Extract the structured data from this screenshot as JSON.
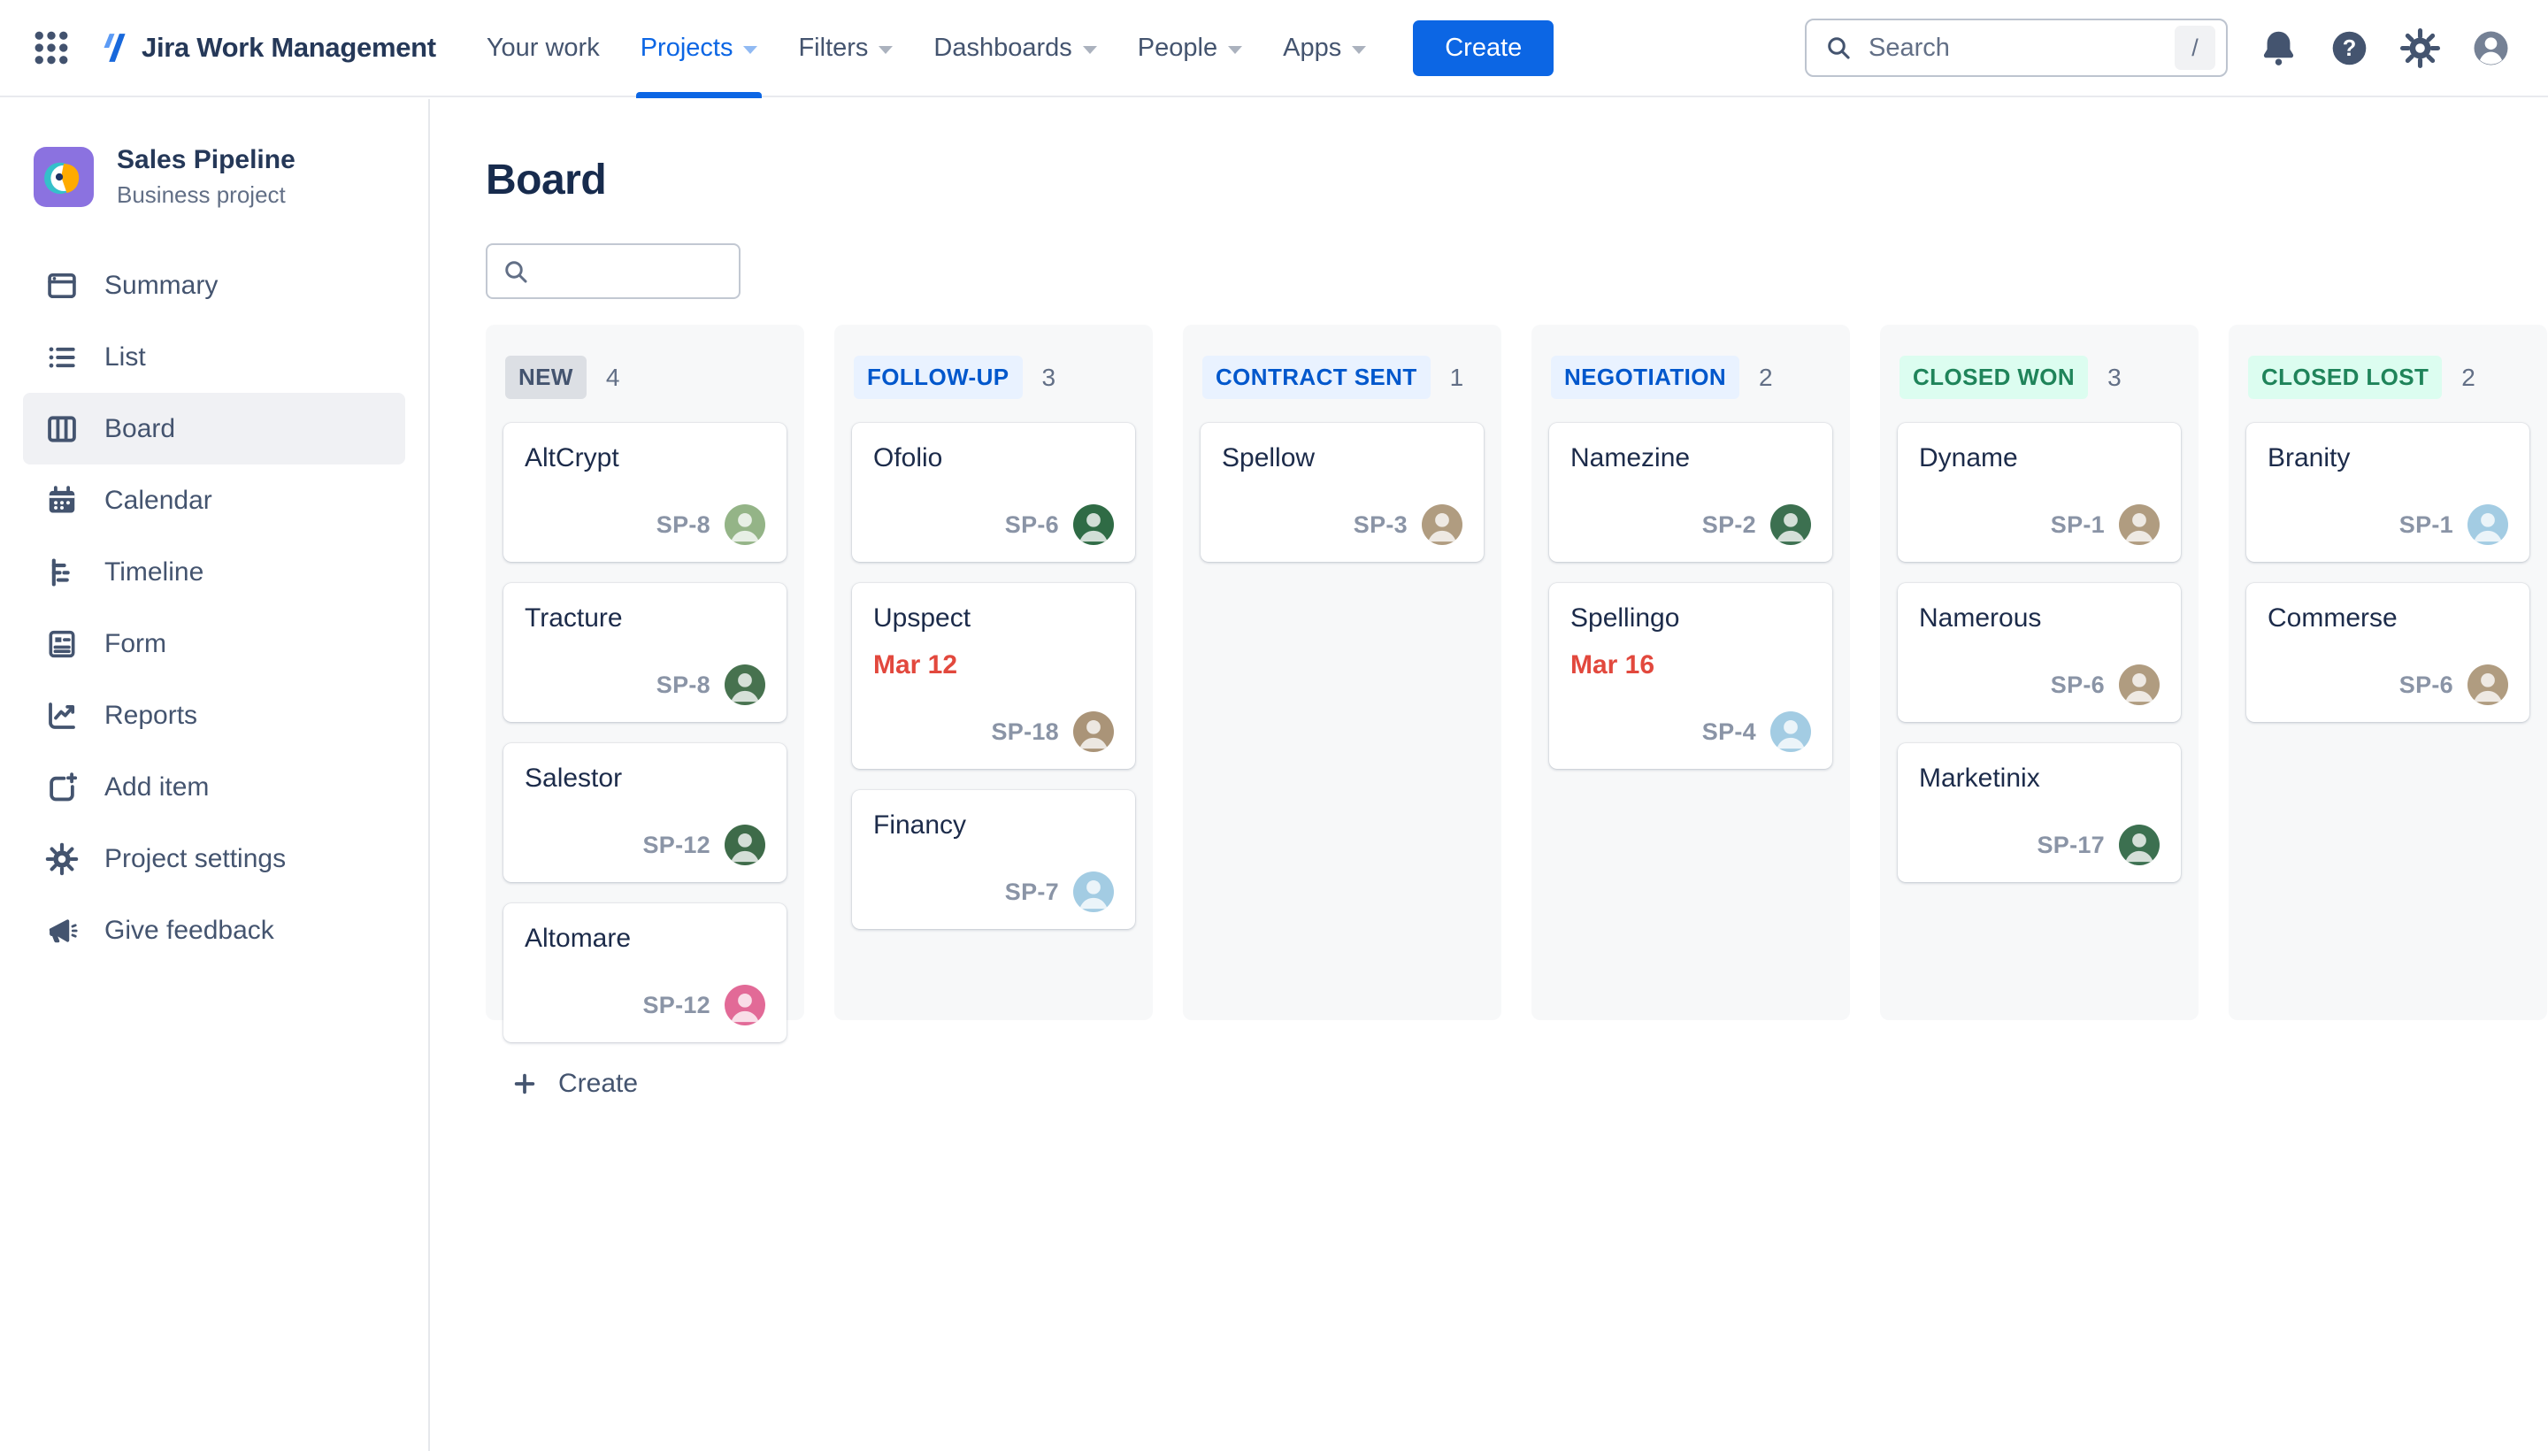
{
  "nav": {
    "app_title": "Jira Work Management",
    "items": [
      {
        "id": "your-work",
        "label": "Your work",
        "caret": false,
        "active": false
      },
      {
        "id": "projects",
        "label": "Projects",
        "caret": true,
        "active": true
      },
      {
        "id": "filters",
        "label": "Filters",
        "caret": true,
        "active": false
      },
      {
        "id": "dashboards",
        "label": "Dashboards",
        "caret": true,
        "active": false
      },
      {
        "id": "people",
        "label": "People",
        "caret": true,
        "active": false
      },
      {
        "id": "apps",
        "label": "Apps",
        "caret": true,
        "active": false
      }
    ],
    "create_label": "Create",
    "search": {
      "placeholder": "Search",
      "shortcut": "/"
    },
    "icon_buttons": [
      {
        "id": "notifications",
        "icon": "bell-icon"
      },
      {
        "id": "help",
        "icon": "help-icon"
      },
      {
        "id": "settings",
        "icon": "gear-icon"
      },
      {
        "id": "profile",
        "icon": "avatar-icon"
      }
    ]
  },
  "sidebar": {
    "project": {
      "name": "Sales Pipeline",
      "type": "Business project",
      "icon": "parrot-project-icon"
    },
    "items": [
      {
        "id": "summary",
        "label": "Summary",
        "icon": "summary-icon",
        "active": false
      },
      {
        "id": "list",
        "label": "List",
        "icon": "list-icon",
        "active": false
      },
      {
        "id": "board",
        "label": "Board",
        "icon": "board-icon",
        "active": true
      },
      {
        "id": "calendar",
        "label": "Calendar",
        "icon": "calendar-icon",
        "active": false
      },
      {
        "id": "timeline",
        "label": "Timeline",
        "icon": "timeline-icon",
        "active": false
      },
      {
        "id": "form",
        "label": "Form",
        "icon": "form-icon",
        "active": false
      },
      {
        "id": "reports",
        "label": "Reports",
        "icon": "reports-icon",
        "active": false
      },
      {
        "id": "add-item",
        "label": "Add item",
        "icon": "add-item-icon",
        "active": false
      },
      {
        "id": "project-settings",
        "label": "Project settings",
        "icon": "gear-icon",
        "active": false
      },
      {
        "id": "give-feedback",
        "label": "Give feedback",
        "icon": "megaphone-icon",
        "active": false
      }
    ]
  },
  "board": {
    "title": "Board",
    "search_placeholder": "",
    "create_label": "Create",
    "columns": [
      {
        "name": "NEW",
        "count": 4,
        "style": "gray",
        "has_create": true,
        "cards": [
          {
            "title": "AltCrypt",
            "key": "SP-8",
            "avatar_color": "#94B487"
          },
          {
            "title": "Tracture",
            "key": "SP-8",
            "avatar_color": "#47724F"
          },
          {
            "title": "Salestor",
            "key": "SP-12",
            "avatar_color": "#3E6B49"
          },
          {
            "title": "Altomare",
            "key": "SP-12",
            "avatar_color": "#E26A97"
          }
        ]
      },
      {
        "name": "FOLLOW-UP",
        "count": 3,
        "style": "blue",
        "has_create": false,
        "cards": [
          {
            "title": "Ofolio",
            "key": "SP-6",
            "avatar_color": "#2F6B45"
          },
          {
            "title": "Upspect",
            "key": "SP-18",
            "due": "Mar 12",
            "avatar_color": "#AA9478"
          },
          {
            "title": "Financy",
            "key": "SP-7",
            "avatar_color": "#A3CCE3"
          }
        ]
      },
      {
        "name": "CONTRACT SENT",
        "count": 1,
        "style": "blue",
        "has_create": false,
        "cards": [
          {
            "title": "Spellow",
            "key": "SP-3",
            "avatar_color": "#B09C80"
          }
        ]
      },
      {
        "name": "NEGOTIATION",
        "count": 2,
        "style": "blue",
        "has_create": false,
        "cards": [
          {
            "title": "Namezine",
            "key": "SP-2",
            "avatar_color": "#3C7050"
          },
          {
            "title": "Spellingo",
            "key": "SP-4",
            "due": "Mar 16",
            "avatar_color": "#A3CCE3"
          }
        ]
      },
      {
        "name": "CLOSED WON",
        "count": 3,
        "style": "green",
        "has_create": false,
        "cards": [
          {
            "title": "Dyname",
            "key": "SP-1",
            "avatar_color": "#B09C80"
          },
          {
            "title": "Namerous",
            "key": "SP-6",
            "avatar_color": "#B09C80"
          },
          {
            "title": "Marketinix",
            "key": "SP-17",
            "avatar_color": "#3C7050"
          }
        ]
      },
      {
        "name": "CLOSED LOST",
        "count": 2,
        "style": "green",
        "has_create": false,
        "cards": [
          {
            "title": "Branity",
            "key": "SP-1",
            "avatar_color": "#A3CCE3"
          },
          {
            "title": "Commerse",
            "key": "SP-6",
            "avatar_color": "#B09C80"
          }
        ]
      }
    ]
  },
  "colors": {
    "accent_blue": "#0C66E4",
    "due_red": "#E2483D",
    "badge_gray_bg": "#DCDFE4",
    "badge_blue_bg": "#E9F2FF",
    "badge_blue_text": "#0057CC",
    "badge_green_bg": "#DCFDF0",
    "badge_green_text": "#1F845A",
    "column_bg": "#F7F8F9",
    "text_navy": "#172B4D",
    "text_slate": "#44546F"
  }
}
